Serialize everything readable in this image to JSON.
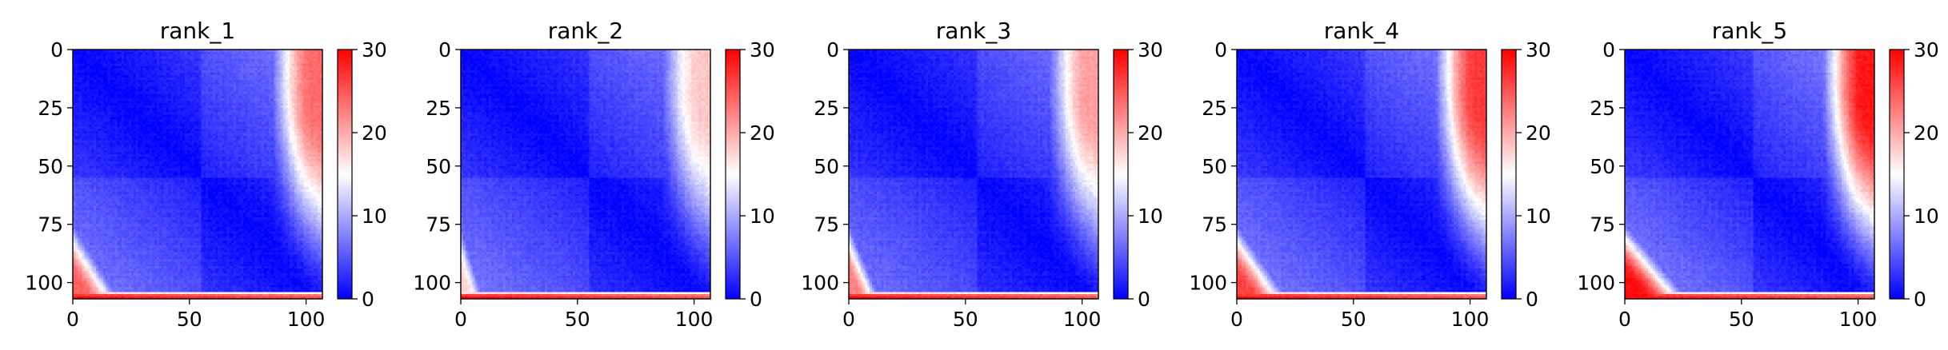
{
  "chart_data": [
    {
      "type": "heatmap",
      "title": "rank_1",
      "x_ticks": [
        "0",
        "50",
        "100"
      ],
      "y_ticks": [
        "0",
        "25",
        "50",
        "75",
        "100"
      ],
      "xlim": [
        0,
        107
      ],
      "ylim": [
        107,
        0
      ],
      "colorbar": {
        "range": [
          0,
          30
        ],
        "ticks": [
          "0",
          "10",
          "20",
          "30"
        ],
        "colormap": "bwr"
      },
      "pattern": {
        "size": 107,
        "block_split": 55,
        "diag_slope": 0.22,
        "bottom_rows": [
          [
            104,
            0.58
          ],
          [
            105,
            0.88
          ],
          [
            106,
            0.98
          ]
        ],
        "corner_top_right": 0.78,
        "corner_bottom_left": 0.8,
        "wedge": 24
      }
    },
    {
      "type": "heatmap",
      "title": "rank_2",
      "x_ticks": [
        "0",
        "50",
        "100"
      ],
      "y_ticks": [
        "0",
        "25",
        "50",
        "75",
        "100"
      ],
      "xlim": [
        0,
        107
      ],
      "ylim": [
        107,
        0
      ],
      "colorbar": {
        "range": [
          0,
          30
        ],
        "ticks": [
          "0",
          "10",
          "20",
          "30"
        ],
        "colormap": "bwr"
      },
      "pattern": {
        "size": 107,
        "block_split": 55,
        "diag_slope": 0.21,
        "bottom_rows": [
          [
            104,
            0.58
          ],
          [
            105,
            0.88
          ],
          [
            106,
            0.98
          ]
        ],
        "corner_top_right": 0.6,
        "corner_bottom_left": 0.58,
        "wedge": 12
      }
    },
    {
      "type": "heatmap",
      "title": "rank_3",
      "x_ticks": [
        "0",
        "50",
        "100"
      ],
      "y_ticks": [
        "0",
        "25",
        "50",
        "75",
        "100"
      ],
      "xlim": [
        0,
        107
      ],
      "ylim": [
        107,
        0
      ],
      "colorbar": {
        "range": [
          0,
          30
        ],
        "ticks": [
          "0",
          "10",
          "20",
          "30"
        ],
        "colormap": "bwr"
      },
      "pattern": {
        "size": 107,
        "block_split": 55,
        "diag_slope": 0.2,
        "bottom_rows": [
          [
            104,
            0.58
          ],
          [
            105,
            0.88
          ],
          [
            106,
            0.98
          ]
        ],
        "corner_top_right": 0.68,
        "corner_bottom_left": 0.74,
        "wedge": 16
      }
    },
    {
      "type": "heatmap",
      "title": "rank_4",
      "x_ticks": [
        "0",
        "50",
        "100"
      ],
      "y_ticks": [
        "0",
        "25",
        "50",
        "75",
        "100"
      ],
      "xlim": [
        0,
        107
      ],
      "ylim": [
        107,
        0
      ],
      "colorbar": {
        "range": [
          0,
          30
        ],
        "ticks": [
          "0",
          "10",
          "20",
          "30"
        ],
        "colormap": "bwr"
      },
      "pattern": {
        "size": 107,
        "block_split": 55,
        "diag_slope": 0.23,
        "bottom_rows": [
          [
            104,
            0.58
          ],
          [
            105,
            0.88
          ],
          [
            106,
            0.98
          ]
        ],
        "corner_top_right": 0.88,
        "corner_bottom_left": 0.86,
        "wedge": 26
      }
    },
    {
      "type": "heatmap",
      "title": "rank_5",
      "x_ticks": [
        "0",
        "50",
        "100"
      ],
      "y_ticks": [
        "0",
        "25",
        "50",
        "75",
        "100"
      ],
      "xlim": [
        0,
        107
      ],
      "ylim": [
        107,
        0
      ],
      "colorbar": {
        "range": [
          0,
          30
        ],
        "ticks": [
          "0",
          "10",
          "20",
          "30"
        ],
        "colormap": "bwr"
      },
      "pattern": {
        "size": 107,
        "block_split": 55,
        "diag_slope": 0.24,
        "bottom_rows": [
          [
            104,
            0.58
          ],
          [
            105,
            0.88
          ],
          [
            106,
            0.98
          ]
        ],
        "corner_top_right": 0.95,
        "corner_bottom_left": 0.97,
        "wedge": 32
      }
    }
  ]
}
